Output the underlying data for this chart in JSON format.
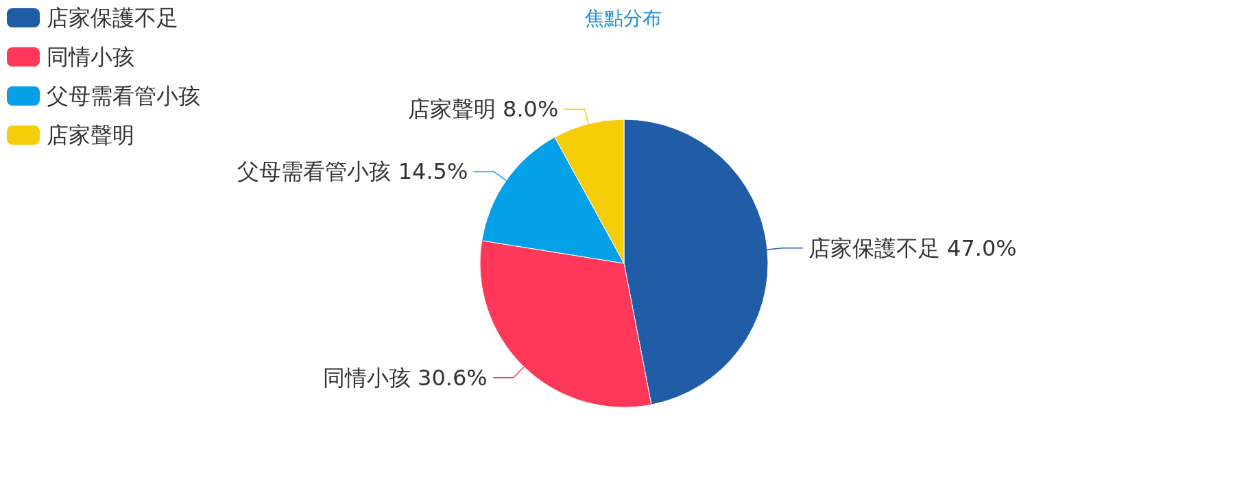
{
  "chart_data": {
    "type": "pie",
    "title": "焦點分布",
    "categories": [
      "店家保護不足",
      "同情小孩",
      "父母需看管小孩",
      "店家聲明"
    ],
    "values": [
      47.0,
      30.6,
      14.5,
      8.0
    ],
    "value_labels": [
      "47.0%",
      "30.6%",
      "14.5%",
      "8.0%"
    ],
    "colors": [
      "#215ca6",
      "#ff3859",
      "#04a0e8",
      "#f6cd09"
    ],
    "legend": "top left"
  }
}
